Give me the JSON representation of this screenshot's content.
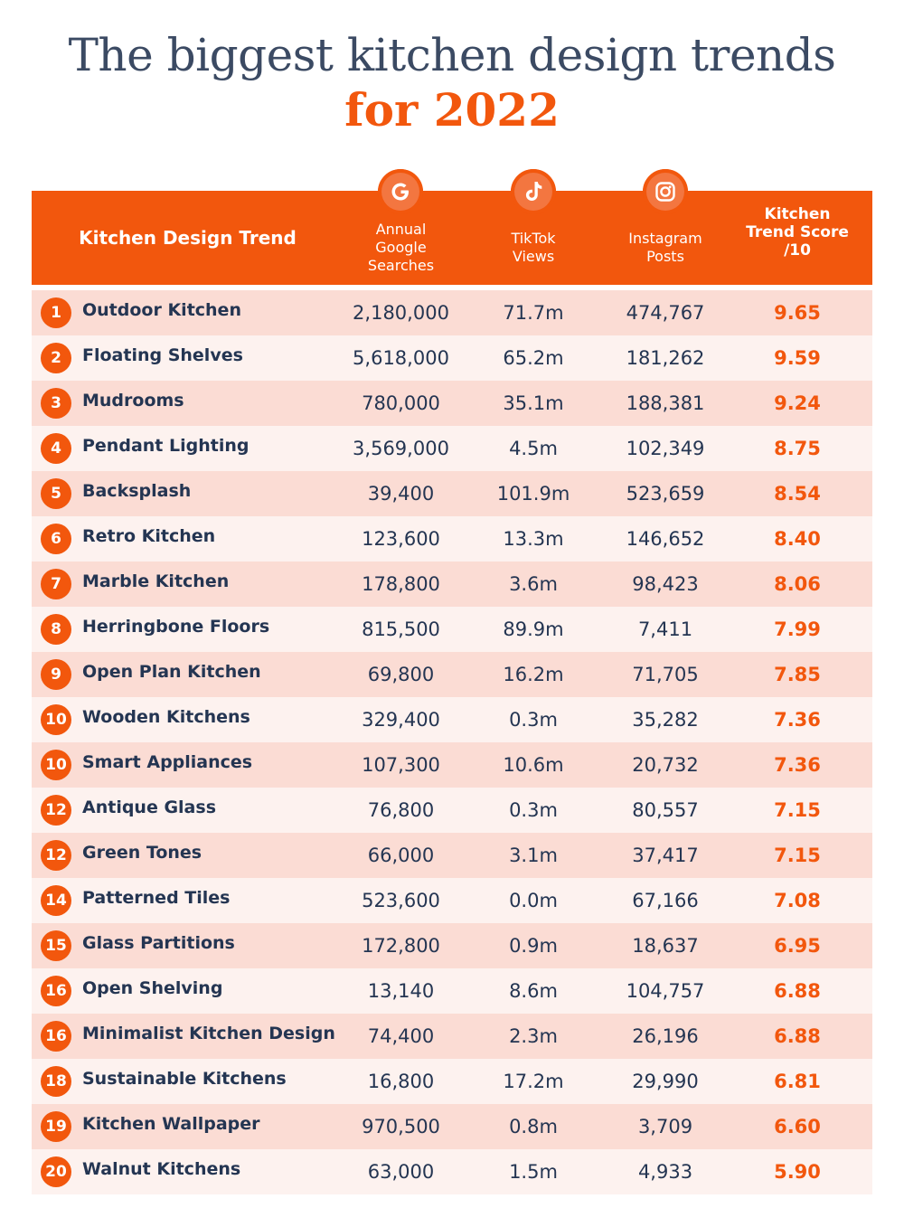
{
  "title": {
    "line1": "The biggest kitchen design trends",
    "line2": "for 2022"
  },
  "colors": {
    "accent": "#f2570d",
    "title": "#3b4a63",
    "text": "#243552",
    "row_odd": "#fbdcd4",
    "row_even": "#fdf2ef"
  },
  "chart_data": {
    "type": "table",
    "columns": [
      "Kitchen Design Trend",
      "Annual\nGoogle\nSearches",
      "TikTok\nViews",
      "Instagram\nPosts",
      "Kitchen\nTrend Score\n/10"
    ],
    "column_icons": [
      "google-icon",
      "tiktok-icon",
      "instagram-icon"
    ],
    "rows": [
      {
        "rank": "1",
        "trend": "Outdoor Kitchen",
        "google": "2,180,000",
        "tiktok": "71.7m",
        "instagram": "474,767",
        "score": "9.65"
      },
      {
        "rank": "2",
        "trend": "Floating Shelves",
        "google": "5,618,000",
        "tiktok": "65.2m",
        "instagram": "181,262",
        "score": "9.59"
      },
      {
        "rank": "3",
        "trend": "Mudrooms",
        "google": "780,000",
        "tiktok": "35.1m",
        "instagram": "188,381",
        "score": "9.24"
      },
      {
        "rank": "4",
        "trend": "Pendant Lighting",
        "google": "3,569,000",
        "tiktok": "4.5m",
        "instagram": "102,349",
        "score": "8.75"
      },
      {
        "rank": "5",
        "trend": "Backsplash",
        "google": "39,400",
        "tiktok": "101.9m",
        "instagram": "523,659",
        "score": "8.54"
      },
      {
        "rank": "6",
        "trend": "Retro Kitchen",
        "google": "123,600",
        "tiktok": "13.3m",
        "instagram": "146,652",
        "score": "8.40"
      },
      {
        "rank": "7",
        "trend": "Marble Kitchen",
        "google": "178,800",
        "tiktok": "3.6m",
        "instagram": "98,423",
        "score": "8.06"
      },
      {
        "rank": "8",
        "trend": "Herringbone Floors",
        "google": "815,500",
        "tiktok": "89.9m",
        "instagram": "7,411",
        "score": "7.99"
      },
      {
        "rank": "9",
        "trend": "Open Plan Kitchen",
        "google": "69,800",
        "tiktok": "16.2m",
        "instagram": "71,705",
        "score": "7.85"
      },
      {
        "rank": "10",
        "trend": "Wooden Kitchens",
        "google": "329,400",
        "tiktok": "0.3m",
        "instagram": "35,282",
        "score": "7.36"
      },
      {
        "rank": "10",
        "trend": "Smart Appliances",
        "google": "107,300",
        "tiktok": "10.6m",
        "instagram": "20,732",
        "score": "7.36"
      },
      {
        "rank": "12",
        "trend": "Antique Glass",
        "google": "76,800",
        "tiktok": "0.3m",
        "instagram": "80,557",
        "score": "7.15"
      },
      {
        "rank": "12",
        "trend": "Green Tones",
        "google": "66,000",
        "tiktok": "3.1m",
        "instagram": "37,417",
        "score": "7.15"
      },
      {
        "rank": "14",
        "trend": "Patterned Tiles",
        "google": "523,600",
        "tiktok": "0.0m",
        "instagram": "67,166",
        "score": "7.08"
      },
      {
        "rank": "15",
        "trend": "Glass Partitions",
        "google": "172,800",
        "tiktok": "0.9m",
        "instagram": "18,637",
        "score": "6.95"
      },
      {
        "rank": "16",
        "trend": "Open Shelving",
        "google": "13,140",
        "tiktok": "8.6m",
        "instagram": "104,757",
        "score": "6.88"
      },
      {
        "rank": "16",
        "trend": "Minimalist Kitchen Design",
        "google": "74,400",
        "tiktok": "2.3m",
        "instagram": "26,196",
        "score": "6.88"
      },
      {
        "rank": "18",
        "trend": "Sustainable Kitchens",
        "google": "16,800",
        "tiktok": "17.2m",
        "instagram": "29,990",
        "score": "6.81"
      },
      {
        "rank": "19",
        "trend": "Kitchen Wallpaper",
        "google": "970,500",
        "tiktok": "0.8m",
        "instagram": "3,709",
        "score": "6.60"
      },
      {
        "rank": "20",
        "trend": "Walnut Kitchens",
        "google": "63,000",
        "tiktok": "1.5m",
        "instagram": "4,933",
        "score": "5.90"
      }
    ]
  }
}
